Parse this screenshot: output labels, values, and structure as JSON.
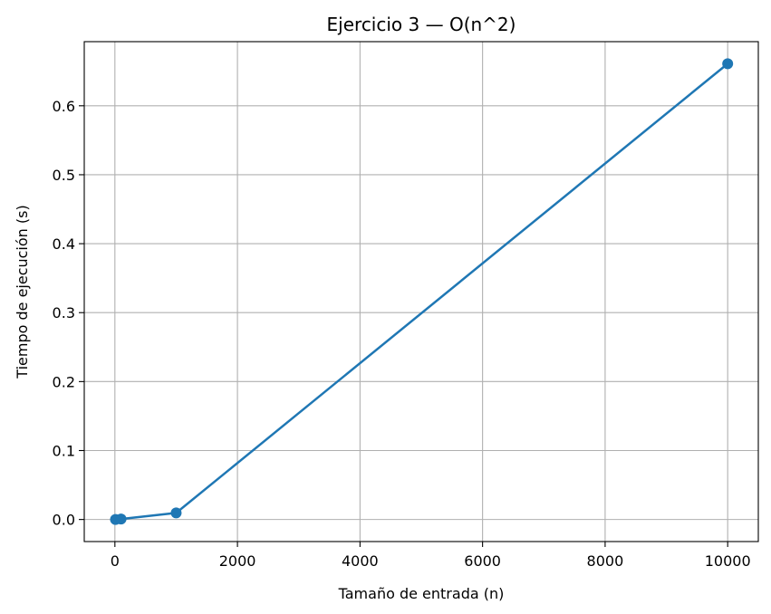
{
  "chart_data": {
    "type": "line",
    "title": "Ejercicio 3 — O(n^2)",
    "xlabel": "Tamaño de entrada (n)",
    "ylabel": "Tiempo de ejecución (s)",
    "xlim": [
      -500,
      10500
    ],
    "ylim": [
      -0.032,
      0.693
    ],
    "xticks": [
      0,
      2000,
      4000,
      6000,
      8000,
      10000
    ],
    "xtick_labels": [
      "0",
      "2000",
      "4000",
      "6000",
      "8000",
      "10000"
    ],
    "yticks": [
      0.0,
      0.1,
      0.2,
      0.3,
      0.4,
      0.5,
      0.6
    ],
    "ytick_labels": [
      "0.0",
      "0.1",
      "0.2",
      "0.3",
      "0.4",
      "0.5",
      "0.6"
    ],
    "grid": true,
    "series": [
      {
        "color": "#1f77b4",
        "marker": "circle",
        "x": [
          10,
          100,
          1000,
          10000
        ],
        "y": [
          1e-05,
          0.0007,
          0.0095,
          0.661
        ]
      }
    ]
  }
}
